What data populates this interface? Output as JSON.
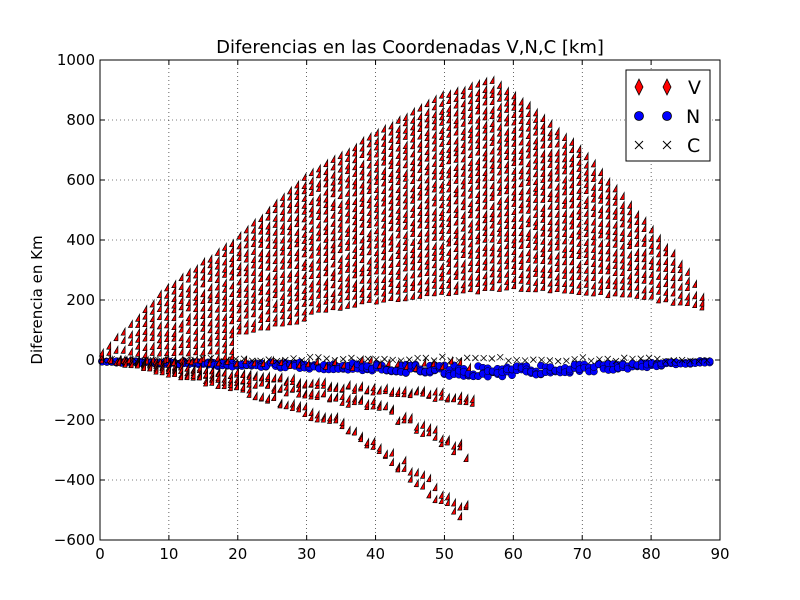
{
  "chart_data": {
    "type": "scatter",
    "title": "Diferencias en las Coordenadas V,N,C [km]",
    "xlabel": "",
    "ylabel": "Diferencia en Km",
    "xlim": [
      0,
      90
    ],
    "ylim": [
      -600,
      1000
    ],
    "xticks": [
      "0",
      "10",
      "20",
      "30",
      "40",
      "50",
      "60",
      "70",
      "80",
      "90"
    ],
    "yticks": [
      "−600",
      "−400",
      "−200",
      "0",
      "200",
      "400",
      "600",
      "800",
      "1000"
    ],
    "grid": true,
    "legend_position": "top-right",
    "series": [
      {
        "name": "V",
        "marker": "diamond",
        "color": "#ff0000",
        "edge_color": "#000000",
        "upper_envelope": [
          [
            0,
            0
          ],
          [
            10,
            230
          ],
          [
            20,
            390
          ],
          [
            30,
            600
          ],
          [
            40,
            740
          ],
          [
            50,
            870
          ],
          [
            57,
            920
          ],
          [
            60,
            880
          ],
          [
            70,
            690
          ],
          [
            80,
            430
          ],
          [
            85,
            300
          ],
          [
            88.5,
            165
          ]
        ],
        "band_bottom_curve": [
          [
            10,
            40
          ],
          [
            20,
            100
          ],
          [
            30,
            150
          ],
          [
            40,
            190
          ],
          [
            50,
            215
          ],
          [
            60,
            235
          ],
          [
            70,
            220
          ],
          [
            80,
            200
          ],
          [
            88.5,
            165
          ]
        ],
        "negative_branches": [
          {
            "end": [
              55,
              -145
            ],
            "points": [
              [
                35,
                -100
              ],
              [
                45,
                -115
              ],
              [
                55,
                -145
              ]
            ]
          },
          {
            "end": [
              54,
              -325
            ],
            "points": [
              [
                40,
                -160
              ],
              [
                48,
                -250
              ],
              [
                54,
                -325
              ]
            ]
          },
          {
            "end": [
              53.5,
              -530
            ],
            "points": [
              [
                20,
                -100
              ],
              [
                35,
                -220
              ],
              [
                45,
                -380
              ],
              [
                53.5,
                -530
              ]
            ]
          }
        ]
      },
      {
        "name": "N",
        "marker": "circle",
        "color": "#0000ff",
        "edge_color": "#000000",
        "profile": [
          [
            0,
            -5
          ],
          [
            20,
            -20
          ],
          [
            40,
            -35
          ],
          [
            55,
            -60
          ],
          [
            70,
            -40
          ],
          [
            89,
            -5
          ]
        ]
      },
      {
        "name": "C",
        "marker": "x",
        "color": "#000000",
        "profile": [
          [
            0,
            0
          ],
          [
            45,
            5
          ],
          [
            89,
            0
          ]
        ]
      }
    ]
  }
}
